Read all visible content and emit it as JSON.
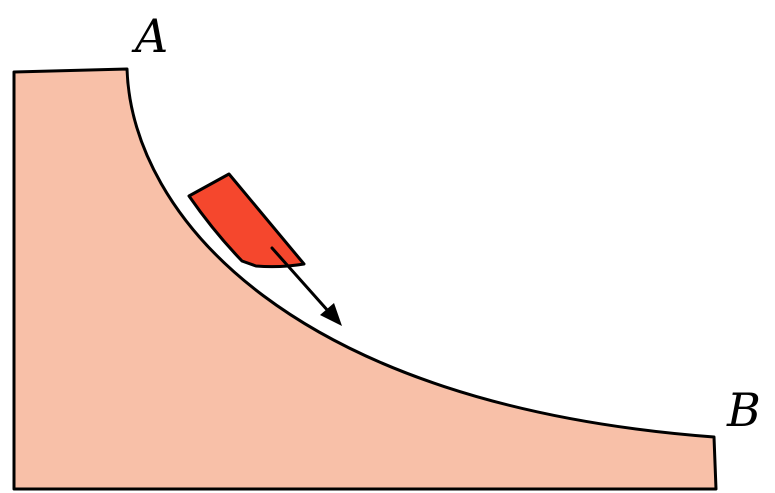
{
  "diagram": {
    "labels": {
      "start": "A",
      "end": "B"
    },
    "colors": {
      "ramp_fill": "#f8c0a8",
      "block_fill": "#f5472d",
      "outline": "#000000",
      "background": "#ffffff"
    },
    "icons": {
      "motion": "arrow-down-right-icon"
    }
  }
}
